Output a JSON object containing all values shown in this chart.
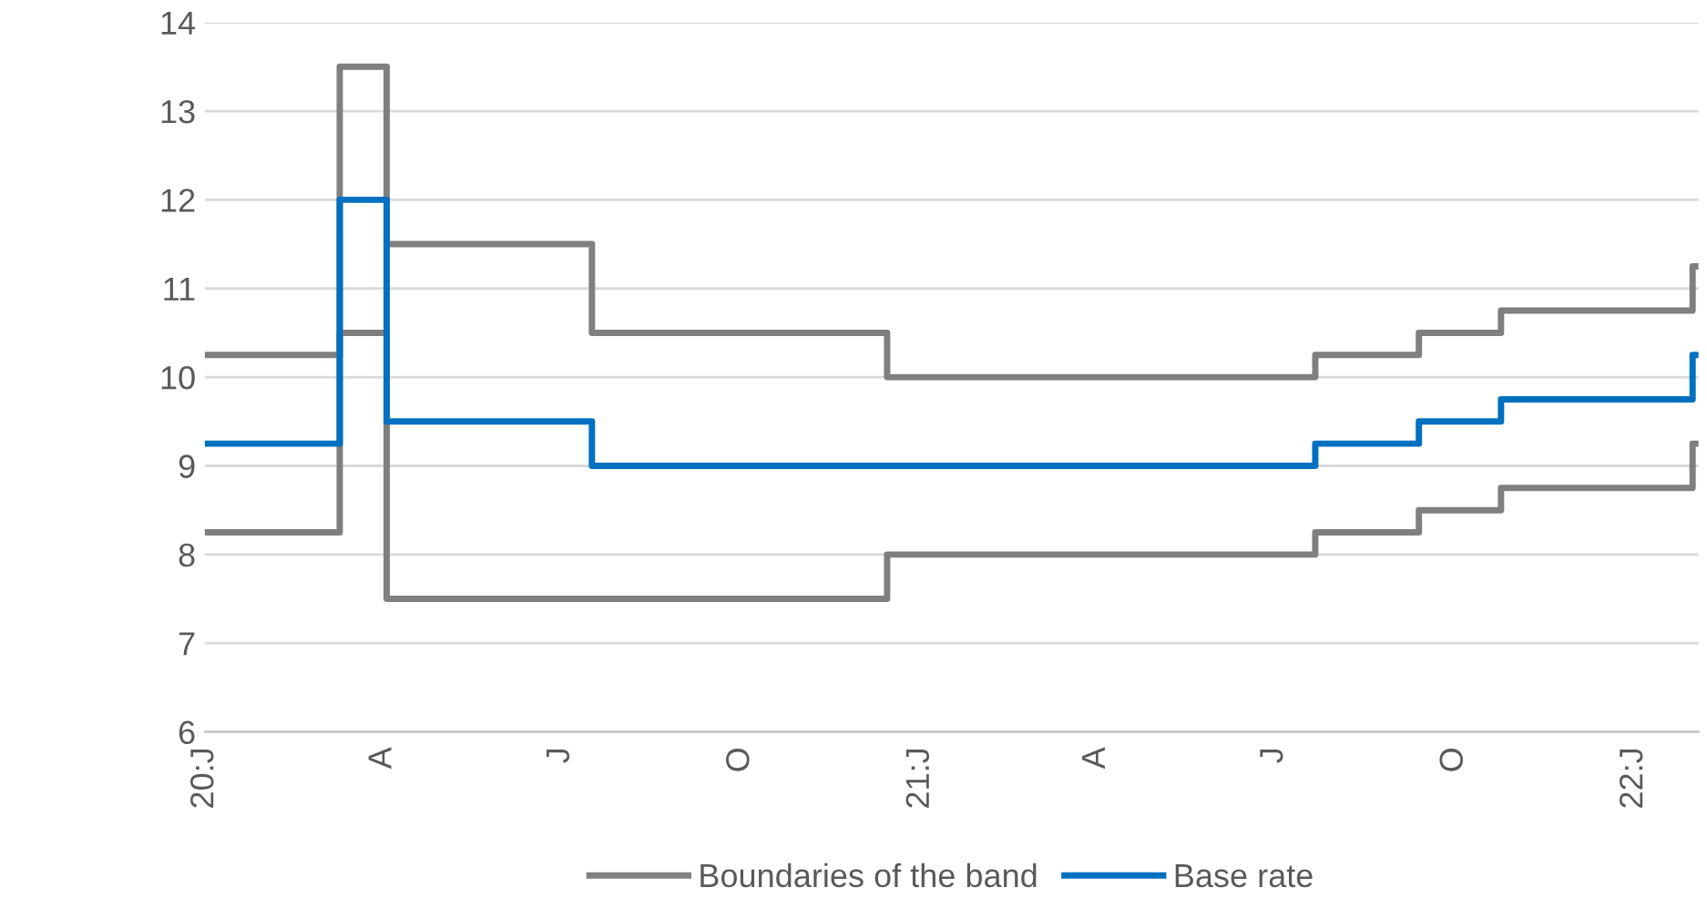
{
  "chart_data": {
    "type": "step",
    "series": [
      {
        "name": "Boundaries of the band",
        "color": "#7f7f7f",
        "x": [
          "2020-01-01",
          "2020-03-10",
          "2020-04-03",
          "2020-07-17",
          "2020-12-15",
          "2021-07-22",
          "2021-09-13",
          "2021-10-25",
          "2022-01-31",
          "2022-02-03"
        ],
        "values": [
          10.25,
          13.5,
          11.5,
          10.5,
          10,
          10.25,
          10.5,
          10.75,
          11.25,
          11.25
        ]
      },
      {
        "color": "#7f7f7f",
        "x": [
          "2020-01-01",
          "2020-03-10",
          "2020-04-03",
          "2020-12-15",
          "2021-07-22",
          "2021-09-13",
          "2021-10-25",
          "2022-01-31",
          "2022-02-03"
        ],
        "values": [
          8.25,
          10.5,
          7.5,
          8,
          8.25,
          8.5,
          8.75,
          9.25,
          9.25
        ]
      },
      {
        "name": "Base rate",
        "color": "#0070c0",
        "x": [
          "2020-01-01",
          "2020-03-10",
          "2020-04-03",
          "2020-07-17",
          "2021-07-22",
          "2021-09-13",
          "2021-10-25",
          "2022-01-31",
          "2022-02-03"
        ],
        "values": [
          9.25,
          12,
          9.5,
          9,
          9.25,
          9.5,
          9.75,
          10.25,
          10.25
        ]
      }
    ],
    "xlim": [
      "2020-01-01",
      "2022-02-03"
    ],
    "xticks": [
      {
        "value": "2020-01-01",
        "label": "20:J"
      },
      {
        "value": "2020-04-01",
        "label": "A"
      },
      {
        "value": "2020-07-01",
        "label": "J"
      },
      {
        "value": "2020-10-01",
        "label": "O"
      },
      {
        "value": "2021-01-01",
        "label": "21:J"
      },
      {
        "value": "2021-04-01",
        "label": "A"
      },
      {
        "value": "2021-07-01",
        "label": "J"
      },
      {
        "value": "2021-10-01",
        "label": "O"
      },
      {
        "value": "2022-01-01",
        "label": "22:J"
      }
    ],
    "ylim": [
      6,
      14
    ],
    "yticks": [
      6,
      7,
      8,
      9,
      10,
      11,
      12,
      13,
      14
    ],
    "grid": "y",
    "legend": "bottom",
    "line_style": "solid",
    "marker": "none"
  }
}
